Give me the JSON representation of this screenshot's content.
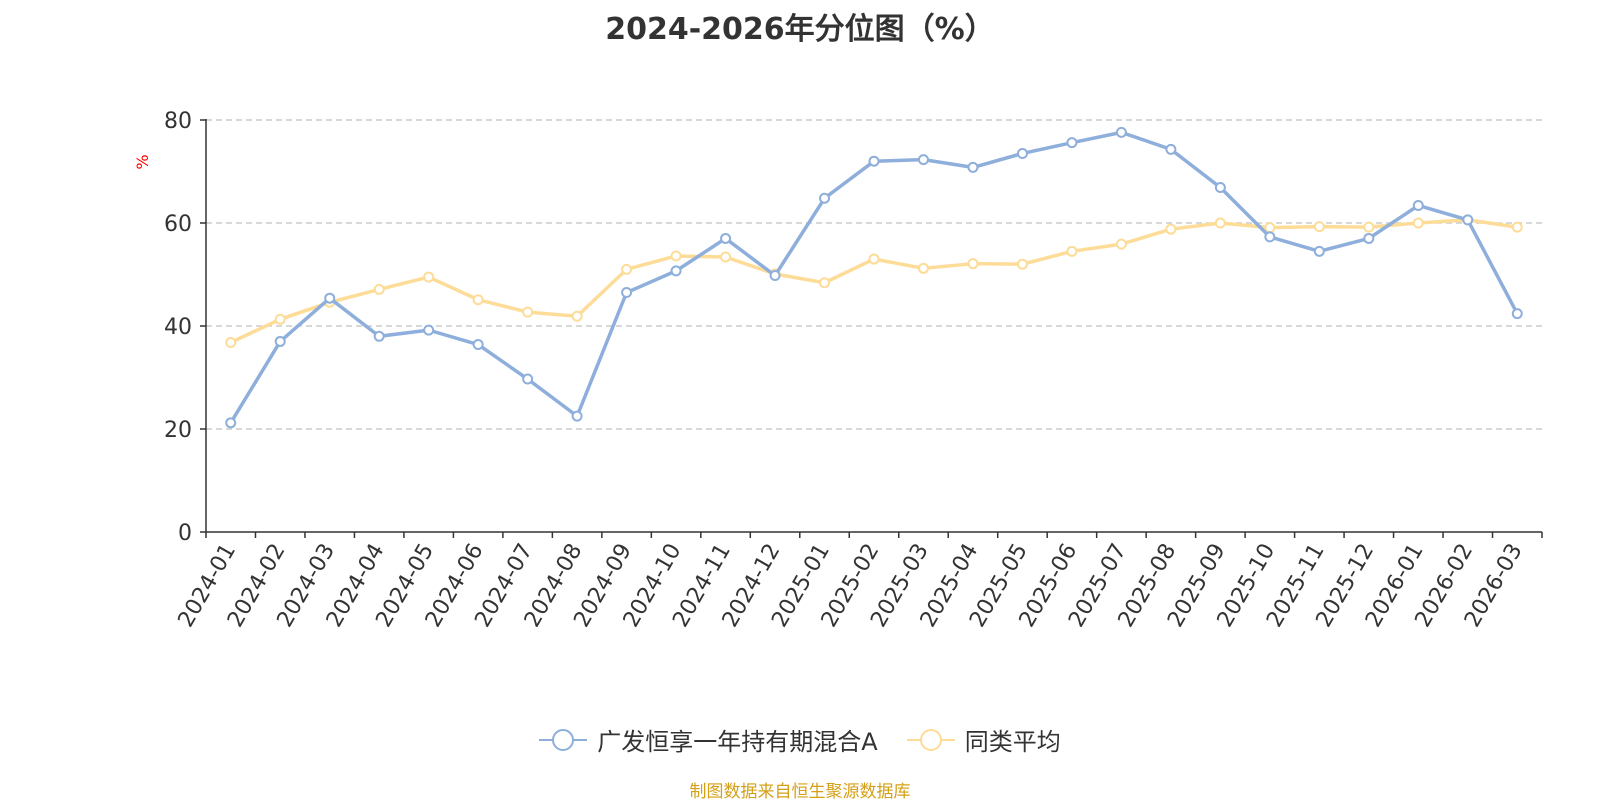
{
  "chart_data": {
    "type": "line",
    "title": "2024-2026年分位图（%）",
    "ylabel": "%",
    "xlabel": "",
    "ylim": [
      0,
      80
    ],
    "yticks": [
      0,
      20,
      40,
      60,
      80
    ],
    "grid": true,
    "legend_position": "bottom",
    "categories": [
      "2024-01",
      "2024-02",
      "2024-03",
      "2024-04",
      "2024-05",
      "2024-06",
      "2024-07",
      "2024-08",
      "2024-09",
      "2024-10",
      "2024-11",
      "2024-12",
      "2025-01",
      "2025-02",
      "2025-03",
      "2025-04",
      "2025-05",
      "2025-06",
      "2025-07",
      "2025-08",
      "2025-09",
      "2025-10",
      "2025-11",
      "2025-12",
      "2026-01",
      "2026-02",
      "2026-03"
    ],
    "series": [
      {
        "name": "广发恒享一年持有期混合A",
        "color": "#8eaedb",
        "values": [
          21.2,
          37.0,
          45.4,
          38.0,
          39.2,
          36.4,
          29.7,
          22.5,
          46.5,
          50.7,
          57.0,
          49.8,
          64.8,
          72.0,
          72.3,
          70.8,
          73.5,
          75.6,
          77.6,
          74.3,
          66.9,
          57.3,
          54.5,
          57.0,
          63.4,
          60.6,
          42.4
        ]
      },
      {
        "name": "同类平均",
        "color": "#fddc98",
        "values": [
          36.8,
          41.3,
          44.6,
          47.1,
          49.5,
          45.1,
          42.7,
          41.9,
          51.0,
          53.6,
          53.4,
          50.1,
          48.4,
          53.0,
          51.2,
          52.1,
          52.0,
          54.5,
          55.9,
          58.8,
          60.0,
          59.1,
          59.3,
          59.2,
          60.0,
          60.6,
          59.2
        ]
      }
    ]
  },
  "source_note": "制图数据来自恒生聚源数据库"
}
